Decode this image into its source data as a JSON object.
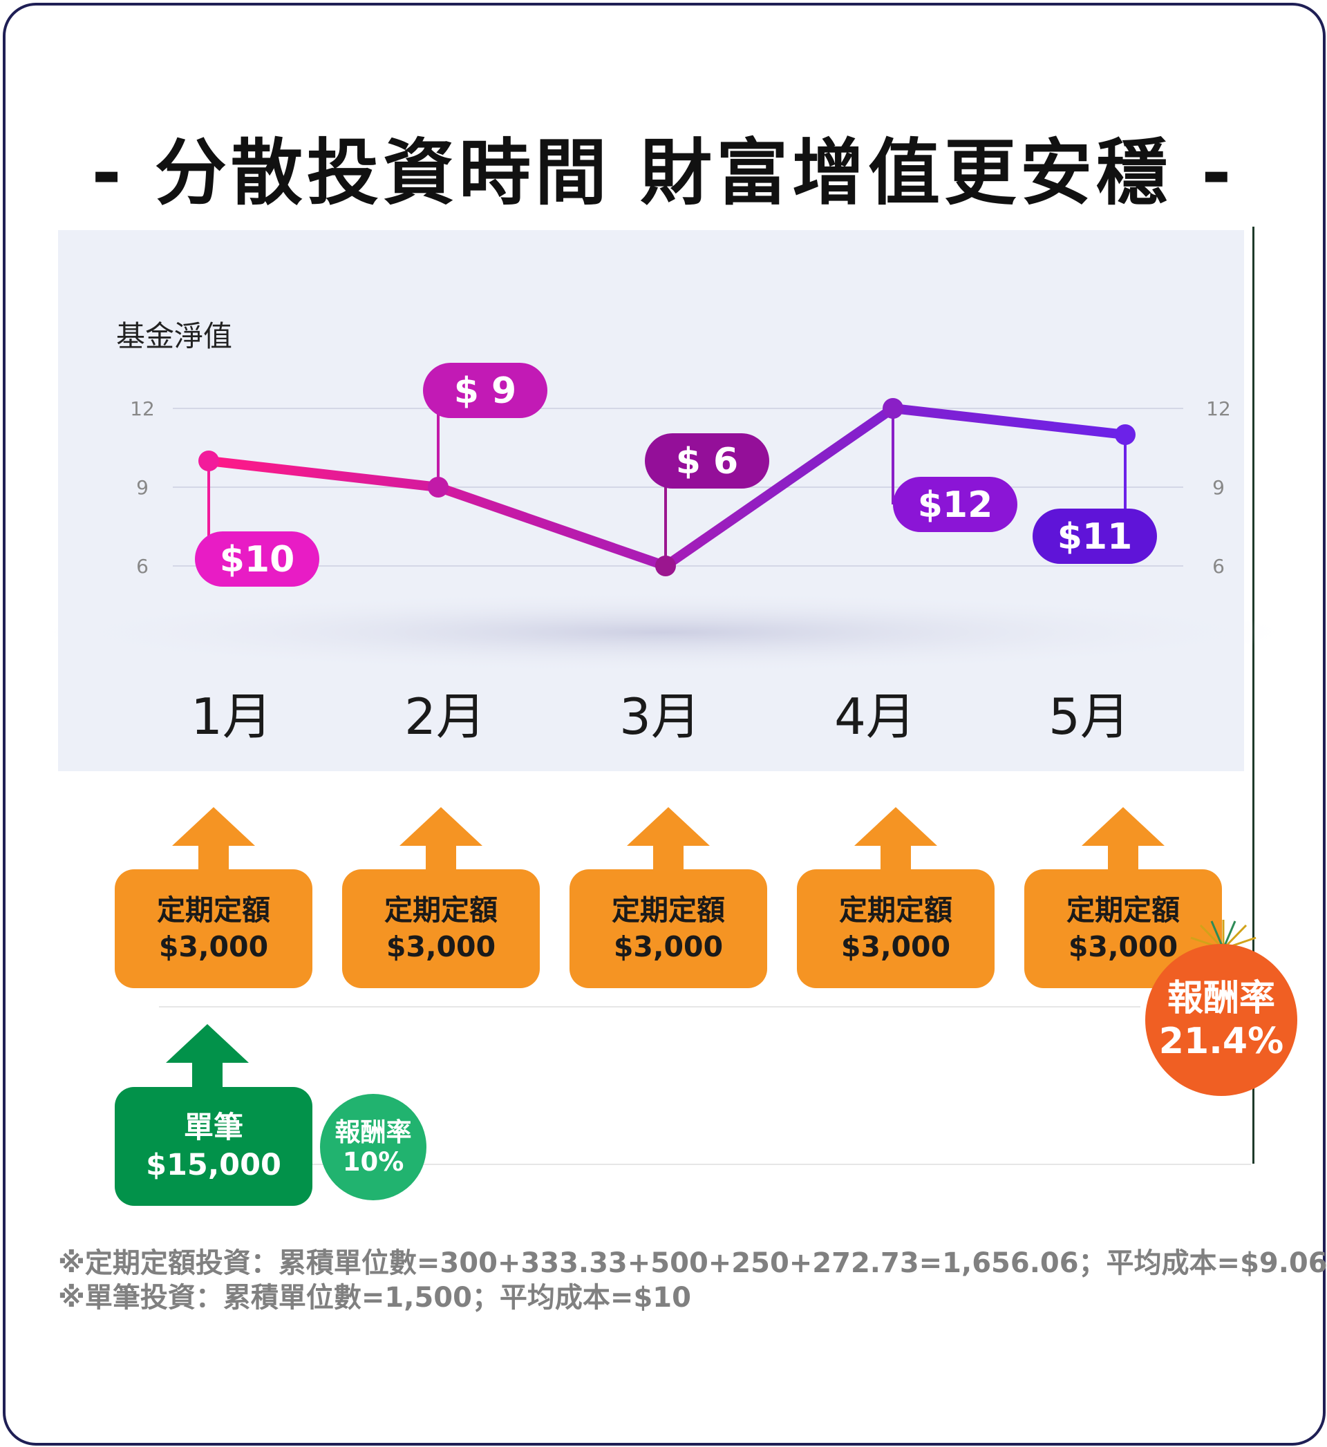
{
  "title": "- 分散投資時間 財富增值更安穩 -",
  "chart_data": {
    "type": "line",
    "ylabel": "基金淨值",
    "categories": [
      "1月",
      "2月",
      "3月",
      "4月",
      "5月"
    ],
    "values": [
      10,
      9,
      6,
      12,
      11
    ],
    "value_labels": [
      "$10",
      "$ 9",
      "$ 6",
      "$12",
      "$11"
    ],
    "yticks": [
      12,
      9,
      6
    ],
    "ylim": [
      6,
      12
    ],
    "grid": true
  },
  "regular": {
    "label": "定期定額",
    "amount": "$3,000",
    "count": 5,
    "color": "#f59423",
    "return_label": "報酬率",
    "return_value": "21.4%",
    "return_color": "#f05f23"
  },
  "lump": {
    "label": "單筆",
    "amount": "$15,000",
    "color": "#02924a",
    "return_label": "報酬率",
    "return_value": "10%",
    "return_color": "#21b36f"
  },
  "notes": [
    "※定期定額投資：累積單位數=300+333.33+500+250+272.73=1,656.06；平均成本=$9.06",
    "※單筆投資：累積單位數=1,500；平均成本=$10"
  ]
}
